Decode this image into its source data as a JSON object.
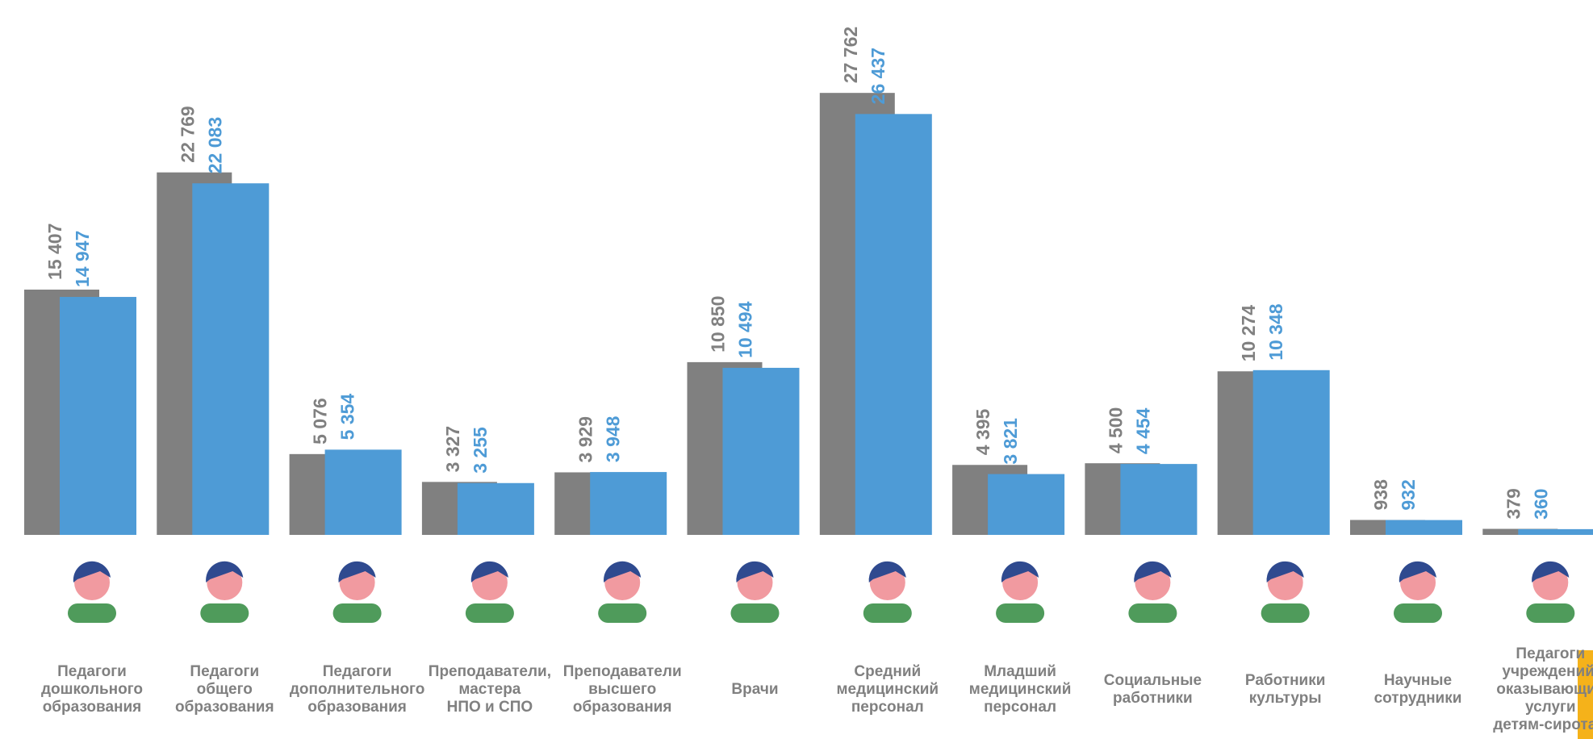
{
  "chart_data": {
    "type": "bar",
    "categories": [
      "Педагоги\nдошкольного\nобразования",
      "Педагоги\nобщего\nобразования",
      "Педагоги\nдополнительного\nобразования",
      "Преподаватели,\nмастера\nНПО и СПО",
      "Преподаватели\nвысшего\nобразования",
      "Врачи",
      "Средний\nмедицинский\nперсонал",
      "Младший\nмедицинский\nперсонал",
      "Социальные\nработники",
      "Работники\nкультуры",
      "Научные\nсотрудники",
      "Педагоги\nучреждений,\nоказывающих\nуслуги\nдетям-сиротам"
    ],
    "series": [
      {
        "color": "#808080",
        "values": [
          15407,
          22769,
          5076,
          3327,
          3929,
          10850,
          27762,
          4395,
          4500,
          10274,
          938,
          379
        ],
        "value_labels": [
          "15 407",
          "22 769",
          "5 076",
          "3 327",
          "3 929",
          "10 850",
          "27 762",
          "4 395",
          "4 500",
          "10 274",
          "938",
          "379"
        ]
      },
      {
        "color": "#4e9bd6",
        "values": [
          14947,
          22083,
          5354,
          3255,
          3948,
          10494,
          26437,
          3821,
          4454,
          10348,
          932,
          360
        ],
        "value_labels": [
          "14 947",
          "22 083",
          "5 354",
          "3 255",
          "3 948",
          "10 494",
          "26 437",
          "3 821",
          "4 454",
          "10 348",
          "932",
          "360"
        ]
      }
    ],
    "ylim": [
      0,
      30000
    ]
  }
}
